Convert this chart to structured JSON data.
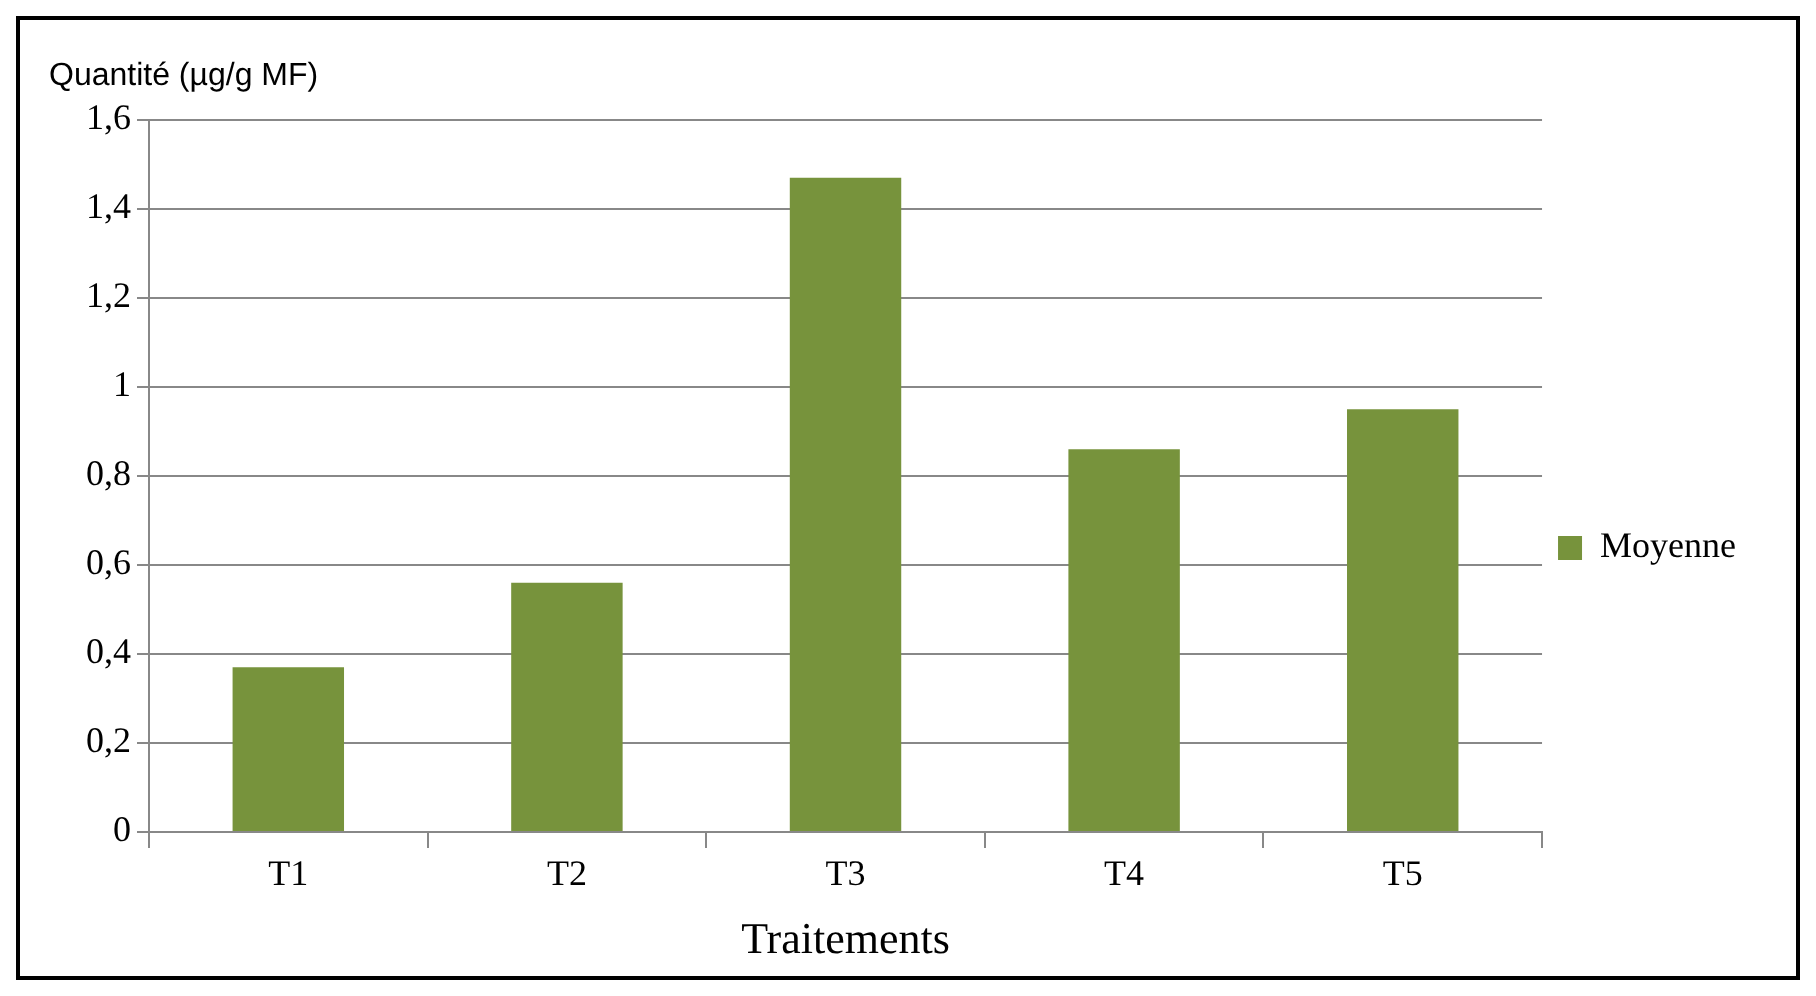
{
  "chart_data": {
    "type": "bar",
    "ylabel": "Quantité (µg/g MF)",
    "xlabel": "Traitements",
    "categories": [
      "T1",
      "T2",
      "T3",
      "T4",
      "T5"
    ],
    "series": [
      {
        "name": "Moyenne",
        "color": "#77933c",
        "values": [
          0.37,
          0.56,
          1.47,
          0.86,
          0.95
        ]
      }
    ],
    "ylim": [
      0,
      1.6
    ],
    "yticks": [
      0,
      {
        "value": 0.2,
        "label": "0,2"
      },
      {
        "value": 0.4,
        "label": "0,4"
      },
      {
        "value": 0.6,
        "label": "0,6"
      },
      {
        "value": 0.8,
        "label": "0,8"
      },
      1,
      {
        "value": 1.2,
        "label": "1,2"
      },
      {
        "value": 1.4,
        "label": "1,4"
      },
      {
        "value": 1.6,
        "label": "1,6"
      }
    ],
    "grid": "y",
    "legend": "right"
  }
}
